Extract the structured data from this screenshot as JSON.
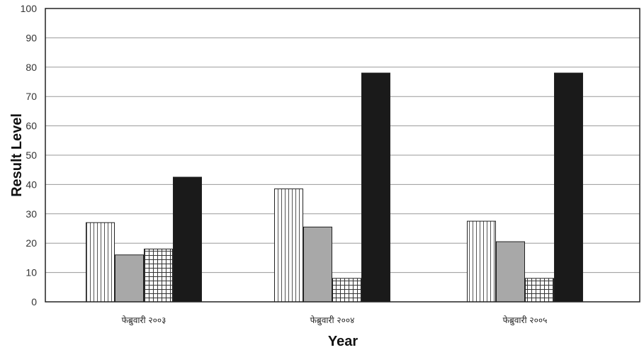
{
  "chart_data": {
    "type": "bar",
    "title": "",
    "xlabel": "Year",
    "ylabel": "Result Level",
    "ylim": [
      0,
      100
    ],
    "yticks": [
      "0",
      "10",
      "20",
      "30",
      "40",
      "50",
      "60",
      "70",
      "80",
      "90",
      "100"
    ],
    "grid": true,
    "legend": "none",
    "categories": [
      "फेब्रुवारी २००३",
      "फेब्रुवारी २००४",
      "फेब्रुवारी २००५"
    ],
    "series": [
      {
        "values": [
          27,
          38.5,
          27.5
        ],
        "fill": "vertical-lines",
        "color": "#ffffff"
      },
      {
        "values": [
          16,
          25.5,
          20.5
        ],
        "fill": "solid",
        "color": "#a8a8a8"
      },
      {
        "values": [
          18,
          8,
          8
        ],
        "fill": "grid",
        "color": "#ffffff"
      },
      {
        "values": [
          42.5,
          78,
          78
        ],
        "fill": "solid",
        "color": "#1a1a1a"
      }
    ]
  }
}
